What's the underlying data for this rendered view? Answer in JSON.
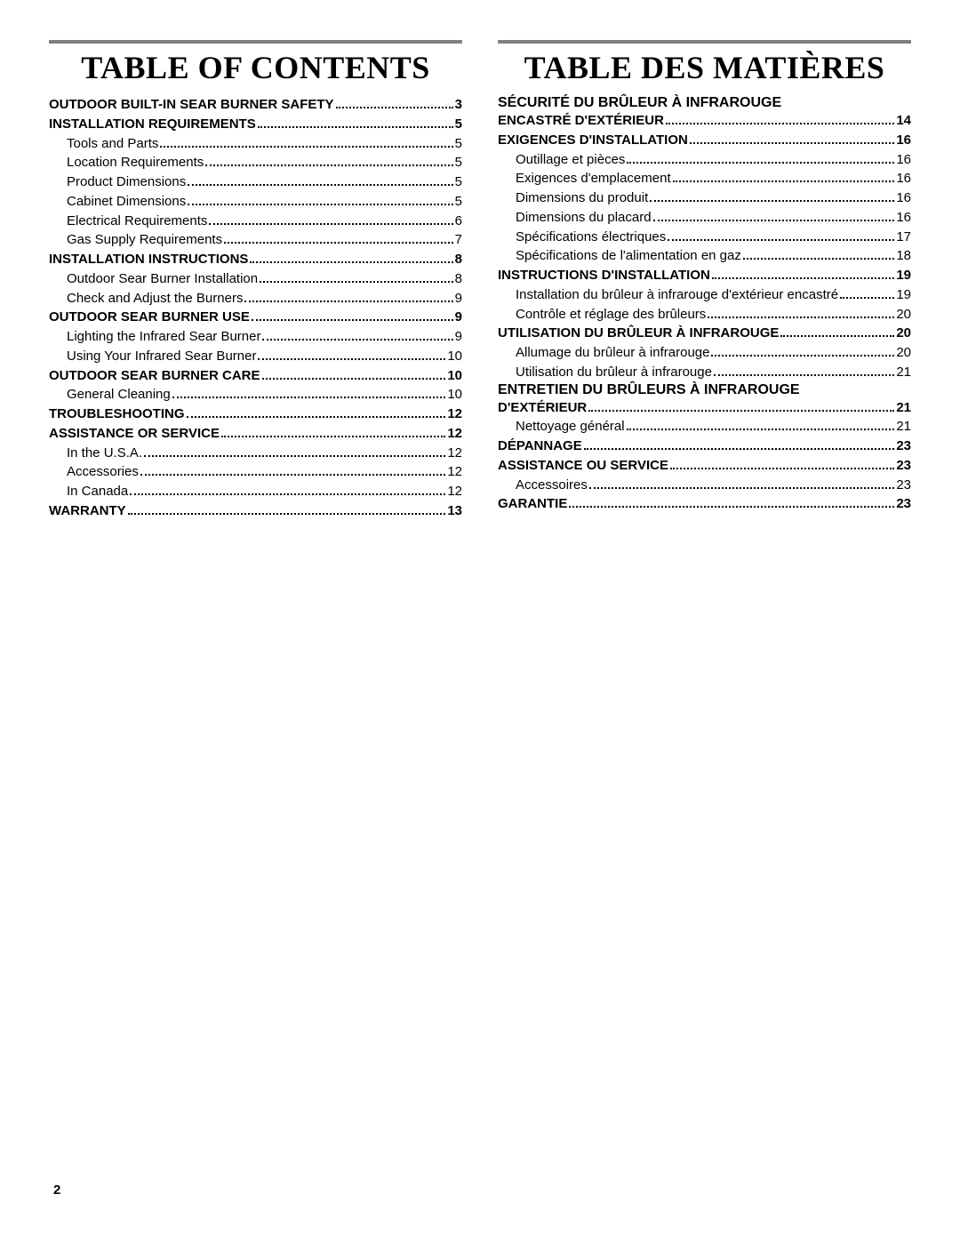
{
  "page_number": "2",
  "columns": [
    {
      "title": "Table Of Contents",
      "entries": [
        {
          "level": 1,
          "label": "OUTDOOR BUILT-IN SEAR BURNER SAFETY",
          "page": "3"
        },
        {
          "level": 1,
          "label": "INSTALLATION REQUIREMENTS",
          "page": "5"
        },
        {
          "level": 2,
          "label": "Tools and Parts",
          "page": "5"
        },
        {
          "level": 2,
          "label": "Location Requirements",
          "page": "5"
        },
        {
          "level": 2,
          "label": "Product Dimensions",
          "page": "5"
        },
        {
          "level": 2,
          "label": "Cabinet Dimensions",
          "page": "5"
        },
        {
          "level": 2,
          "label": "Electrical Requirements",
          "page": "6"
        },
        {
          "level": 2,
          "label": "Gas Supply Requirements",
          "page": "7"
        },
        {
          "level": 1,
          "label": "INSTALLATION INSTRUCTIONS",
          "page": "8"
        },
        {
          "level": 2,
          "label": "Outdoor Sear Burner Installation",
          "page": "8"
        },
        {
          "level": 2,
          "label": "Check and Adjust the Burners",
          "page": "9"
        },
        {
          "level": 1,
          "label": "OUTDOOR SEAR BURNER USE",
          "page": "9"
        },
        {
          "level": 2,
          "label": "Lighting the Infrared Sear Burner",
          "page": "9"
        },
        {
          "level": 2,
          "label": "Using Your Infrared Sear Burner",
          "page": "10"
        },
        {
          "level": 1,
          "label": "OUTDOOR SEAR BURNER CARE",
          "page": "10"
        },
        {
          "level": 2,
          "label": "General Cleaning",
          "page": "10"
        },
        {
          "level": 1,
          "label": "TROUBLESHOOTING",
          "page": "12"
        },
        {
          "level": 1,
          "label": "ASSISTANCE OR SERVICE",
          "page": "12"
        },
        {
          "level": 2,
          "label": "In the U.S.A.",
          "page": "12"
        },
        {
          "level": 2,
          "label": "Accessories",
          "page": "12"
        },
        {
          "level": 2,
          "label": "In Canada",
          "page": "12"
        },
        {
          "level": 1,
          "label": "WARRANTY",
          "page": "13"
        }
      ]
    },
    {
      "title": "Table Des Matières",
      "entries": [
        {
          "level": 1,
          "multi": true,
          "label1": "SÉCURITÉ DU BRÛLEUR À INFRAROUGE",
          "label2": "ENCASTRÉ D'EXTÉRIEUR",
          "page": "14"
        },
        {
          "level": 1,
          "label": "EXIGENCES D'INSTALLATION",
          "page": "16"
        },
        {
          "level": 2,
          "label": "Outillage et pièces",
          "page": "16"
        },
        {
          "level": 2,
          "label": "Exigences d'emplacement",
          "page": "16"
        },
        {
          "level": 2,
          "label": "Dimensions du produit",
          "page": "16"
        },
        {
          "level": 2,
          "label": "Dimensions du placard",
          "page": "16"
        },
        {
          "level": 2,
          "label": "Spécifications électriques",
          "page": "17"
        },
        {
          "level": 2,
          "label": "Spécifications de l'alimentation en gaz",
          "page": "18"
        },
        {
          "level": 1,
          "label": "INSTRUCTIONS D'INSTALLATION",
          "page": "19"
        },
        {
          "level": 2,
          "label": "Installation du brûleur à infrarouge d'extérieur encastré",
          "page": "19"
        },
        {
          "level": 2,
          "label": "Contrôle et réglage des brûleurs",
          "page": "20"
        },
        {
          "level": 1,
          "label": "UTILISATION DU BRÛLEUR À INFRAROUGE",
          "page": "20"
        },
        {
          "level": 2,
          "label": "Allumage du brûleur à infrarouge",
          "page": "20"
        },
        {
          "level": 2,
          "label": "Utilisation du brûleur à infrarouge",
          "page": "21"
        },
        {
          "level": 1,
          "multi": true,
          "label1": "ENTRETIEN DU BRÛLEURS À INFRAROUGE",
          "label2": "D'EXTÉRIEUR",
          "page": "21"
        },
        {
          "level": 2,
          "label": "Nettoyage général",
          "page": "21"
        },
        {
          "level": 1,
          "label": "DÉPANNAGE",
          "page": "23"
        },
        {
          "level": 1,
          "label": "ASSISTANCE OU SERVICE",
          "page": "23"
        },
        {
          "level": 2,
          "label": "Accessoires",
          "page": "23"
        },
        {
          "level": 1,
          "label": "GARANTIE",
          "page": "23"
        }
      ]
    }
  ]
}
